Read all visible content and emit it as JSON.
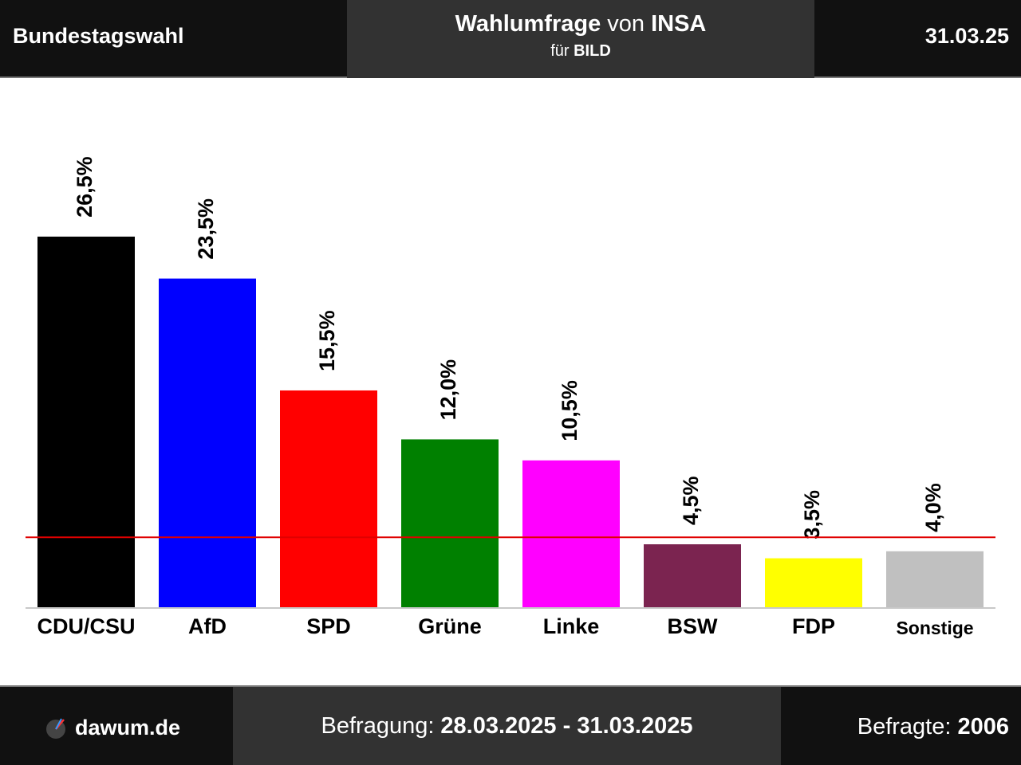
{
  "header": {
    "left_title": "Bundestagswahl",
    "center_title": "Wahlumfrage",
    "center_von": "von",
    "institute": "INSA",
    "center_fuer": "für",
    "client": "BILD",
    "date": "31.03.25"
  },
  "footer": {
    "site": "dawum.de",
    "period_label": "Befragung:",
    "period_value": "28.03.2025 - 31.03.2025",
    "respondents_label": "Befragte:",
    "respondents_value": "2006"
  },
  "colors": {
    "threshold_line": "#e00000",
    "header_bg": "#111111",
    "header_center_bg": "#323232"
  },
  "chart_data": {
    "type": "bar",
    "categories": [
      "CDU/CSU",
      "AfD",
      "SPD",
      "Grüne",
      "Linke",
      "BSW",
      "FDP",
      "Sonstige"
    ],
    "values": [
      26.5,
      23.5,
      15.5,
      12.0,
      10.5,
      4.5,
      3.5,
      4.0
    ],
    "value_labels": [
      "26,5%",
      "23,5%",
      "15,5%",
      "12,0%",
      "10,5%",
      "4,5%",
      "3,5%",
      "4,0%"
    ],
    "colors": [
      "#000000",
      "#0000ff",
      "#ff0000",
      "#008000",
      "#ff00ff",
      "#7b2450",
      "#ffff00",
      "#c0c0c0"
    ],
    "threshold": 5,
    "ylim": [
      0,
      30
    ],
    "grid": false
  }
}
